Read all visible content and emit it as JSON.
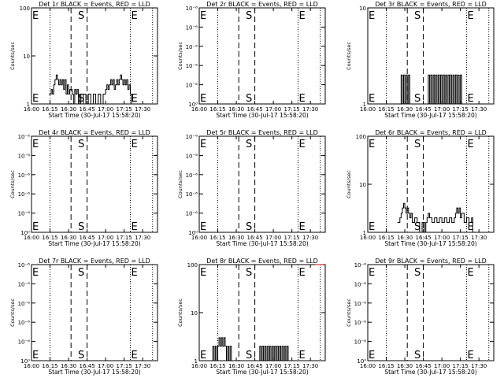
{
  "chart_data": [
    {
      "type": "line",
      "title": "Det 1r BLACK = Events, RED = LLD",
      "xlabel": "Start Time (30-Jul-17 15:58:20)",
      "ylabel": "Counts/sec",
      "x_tick_labels": [
        "16:00",
        "16:15",
        "16:30",
        "16:45",
        "17:00",
        "17:15",
        "17:30"
      ],
      "x_tick_minutes": [
        0,
        15,
        30,
        45,
        60,
        75,
        90
      ],
      "xlim_minutes": [
        0,
        102
      ],
      "yscale": "log",
      "ylim": [
        1,
        100
      ],
      "y_tick_labels": [
        "1",
        "10",
        "100"
      ],
      "y_tick_values": [
        1,
        10,
        100
      ],
      "markers": [
        {
          "label": "E",
          "minute": 0
        },
        {
          "label": "S",
          "minute": 37
        },
        {
          "label": "E",
          "minute": 80
        }
      ],
      "dotted_lines": [
        15,
        80,
        98
      ],
      "dashed_lines": [
        32,
        45
      ],
      "series": [
        {
          "color": "#000000",
          "x": [
            14,
            16,
            17,
            18,
            19,
            20,
            21,
            22,
            23,
            24,
            25,
            26,
            27,
            28,
            29,
            30,
            31,
            33,
            34,
            35,
            36,
            37,
            38,
            39,
            40,
            42,
            44,
            46,
            48,
            50,
            52,
            54,
            56,
            58,
            60,
            61,
            62,
            63,
            64,
            65,
            66,
            67,
            68,
            69,
            70,
            71,
            72,
            73,
            74,
            75,
            76,
            77,
            78,
            79,
            80,
            81
          ],
          "y": [
            1.6,
            2.0,
            1.6,
            2.5,
            3.2,
            4.0,
            3.2,
            2.5,
            3.2,
            2.5,
            3.2,
            2.0,
            3.2,
            1.6,
            2.5,
            1.6,
            2.0,
            1.6,
            1.0,
            2.0,
            1.6,
            2.0,
            1.0,
            1.6,
            1.0,
            1.6,
            1.0,
            1.6,
            1.0,
            1.6,
            1.0,
            1.6,
            1.0,
            1.6,
            2.0,
            2.5,
            2.0,
            2.5,
            3.2,
            2.5,
            3.2,
            2.0,
            2.5,
            3.2,
            2.5,
            3.2,
            4.0,
            3.2,
            2.5,
            3.2,
            2.5,
            3.2,
            2.0,
            2.5,
            1.6,
            1.0
          ]
        }
      ]
    },
    {
      "type": "line",
      "title": "Det 2r BLACK = Events, RED = LLD",
      "xlabel": "Start Time (30-Jul-17 15:58:20)",
      "ylabel": "Counts/sec",
      "x_tick_labels": [
        "16:00",
        "16:15",
        "16:30",
        "16:45",
        "17:00",
        "17:15",
        "17:30"
      ],
      "x_tick_minutes": [
        0,
        15,
        30,
        45,
        60,
        75,
        90
      ],
      "xlim_minutes": [
        0,
        102
      ],
      "yscale": "log",
      "ylim": [
        1,
        1.000001
      ],
      "y_tick_labels": [
        "10⁰",
        "10⁻⁶",
        "10⁻⁶",
        "10⁻⁶",
        "10⁻⁶",
        "10⁻⁶"
      ],
      "y_tick_values": [
        1,
        1.0000002,
        1.0000004,
        1.0000006,
        1.0000008,
        1.000001
      ],
      "markers": [
        {
          "label": "E",
          "minute": 0
        },
        {
          "label": "S",
          "minute": 37
        },
        {
          "label": "E",
          "minute": 80
        }
      ],
      "dotted_lines": [
        15,
        80,
        98
      ],
      "dashed_lines": [
        32,
        45
      ],
      "series": []
    },
    {
      "type": "line",
      "title": "Det 3r BLACK = Events, RED = LLD",
      "xlabel": "Start Time (30-Jul-17 15:58:20)",
      "ylabel": "Counts/sec",
      "x_tick_labels": [
        "16:00",
        "16:15",
        "16:30",
        "16:45",
        "17:00",
        "17:15",
        "17:30"
      ],
      "x_tick_minutes": [
        0,
        15,
        30,
        45,
        60,
        75,
        90
      ],
      "xlim_minutes": [
        0,
        102
      ],
      "yscale": "log",
      "ylim": [
        1,
        10
      ],
      "y_tick_labels": [
        "1",
        "10"
      ],
      "y_tick_values": [
        1,
        10
      ],
      "markers": [
        {
          "label": "E",
          "minute": 0
        },
        {
          "label": "S",
          "minute": 37
        },
        {
          "label": "E",
          "minute": 80
        }
      ],
      "dotted_lines": [
        15,
        80,
        98
      ],
      "dashed_lines": [
        32,
        45
      ],
      "series": [
        {
          "color": "#000000",
          "x": [
            26,
            27,
            28,
            29,
            30,
            31,
            32,
            33,
            34,
            48,
            49,
            50,
            51,
            52,
            53,
            54,
            55,
            56,
            57,
            58,
            59,
            60,
            61,
            62,
            63,
            64,
            65,
            66,
            67,
            68,
            69,
            70,
            71,
            72,
            73,
            74,
            75,
            76
          ],
          "y": [
            1,
            2,
            1,
            2,
            1,
            2,
            1,
            2,
            1,
            1,
            2,
            1,
            2,
            1,
            2,
            1,
            2,
            1,
            2,
            1,
            2,
            1,
            2,
            1,
            2,
            1,
            2,
            1,
            2,
            1,
            2,
            1,
            2,
            1,
            2,
            1,
            2,
            1
          ]
        }
      ]
    },
    {
      "type": "line",
      "title": "Det 4r BLACK = Events, RED = LLD",
      "xlabel": "Start Time (30-Jul-17 15:58:20)",
      "ylabel": "Counts/sec",
      "x_tick_labels": [
        "16:00",
        "16:15",
        "16:30",
        "16:45",
        "17:00",
        "17:15",
        "17:30"
      ],
      "x_tick_minutes": [
        0,
        15,
        30,
        45,
        60,
        75,
        90
      ],
      "xlim_minutes": [
        0,
        102
      ],
      "yscale": "log",
      "ylim": [
        1,
        1.000001
      ],
      "y_tick_labels": [
        "10⁰",
        "10⁻⁶",
        "10⁻⁶",
        "10⁻⁶",
        "10⁻⁶",
        "10⁻⁶"
      ],
      "y_tick_values": [
        1,
        1.0000002,
        1.0000004,
        1.0000006,
        1.0000008,
        1.000001
      ],
      "markers": [
        {
          "label": "E",
          "minute": 0
        },
        {
          "label": "S",
          "minute": 37
        },
        {
          "label": "E",
          "minute": 80
        }
      ],
      "dotted_lines": [
        15,
        80,
        98
      ],
      "dashed_lines": [
        32,
        45
      ],
      "series": []
    },
    {
      "type": "line",
      "title": "Det 5r BLACK = Events, RED = LLD",
      "xlabel": "Start Time (30-Jul-17 15:58:20)",
      "ylabel": "Counts/sec",
      "x_tick_labels": [
        "16:00",
        "16:15",
        "16:30",
        "16:45",
        "17:00",
        "17:15",
        "17:30"
      ],
      "x_tick_minutes": [
        0,
        15,
        30,
        45,
        60,
        75,
        90
      ],
      "xlim_minutes": [
        0,
        102
      ],
      "yscale": "log",
      "ylim": [
        1,
        1.000001
      ],
      "y_tick_labels": [
        "10⁰",
        "10⁻⁶",
        "10⁻⁶",
        "10⁻⁶",
        "10⁻⁶",
        "10⁻⁶"
      ],
      "y_tick_values": [
        1,
        1.0000002,
        1.0000004,
        1.0000006,
        1.0000008,
        1.000001
      ],
      "markers": [
        {
          "label": "E",
          "minute": 0
        },
        {
          "label": "S",
          "minute": 37
        },
        {
          "label": "E",
          "minute": 80
        }
      ],
      "dotted_lines": [
        15,
        80,
        98
      ],
      "dashed_lines": [
        32,
        45
      ],
      "series": []
    },
    {
      "type": "line",
      "title": "Det 6r BLACK = Events, RED = LLD",
      "xlabel": "Start Time (30-Jul-17 15:58:20)",
      "ylabel": "Counts/sec",
      "x_tick_labels": [
        "16:00",
        "16:15",
        "16:30",
        "16:45",
        "17:00",
        "17:15",
        "17:30"
      ],
      "x_tick_minutes": [
        0,
        15,
        30,
        45,
        60,
        75,
        90
      ],
      "xlim_minutes": [
        0,
        102
      ],
      "yscale": "log",
      "ylim": [
        1,
        100
      ],
      "y_tick_labels": [
        "1",
        "10",
        "100"
      ],
      "y_tick_values": [
        1,
        10,
        100
      ],
      "markers": [
        {
          "label": "E",
          "minute": 0
        },
        {
          "label": "S",
          "minute": 37
        },
        {
          "label": "E",
          "minute": 80
        }
      ],
      "dotted_lines": [
        15,
        80,
        98
      ],
      "dashed_lines": [
        32,
        45
      ],
      "series": [
        {
          "color": "#000000",
          "x": [
            24,
            26,
            27,
            28,
            29,
            30,
            31,
            32,
            33,
            34,
            35,
            36,
            38,
            40,
            42,
            44,
            46,
            47,
            48,
            49,
            50,
            52,
            54,
            56,
            58,
            60,
            62,
            64,
            66,
            68,
            70,
            71,
            72,
            73,
            74,
            75,
            76,
            78,
            80,
            82,
            84,
            85
          ],
          "y": [
            1.6,
            2.0,
            2.5,
            3.2,
            4.0,
            3.2,
            2.5,
            3.2,
            2.5,
            2.0,
            2.5,
            1.6,
            2.0,
            1.6,
            1.0,
            1.6,
            1.0,
            1.6,
            2.0,
            2.5,
            2.0,
            1.6,
            2.0,
            1.6,
            2.0,
            1.6,
            2.0,
            1.6,
            2.0,
            1.6,
            2.0,
            2.5,
            3.2,
            2.5,
            3.2,
            2.0,
            2.5,
            1.6,
            2.0,
            1.6,
            2.0,
            1.0
          ]
        }
      ]
    },
    {
      "type": "line",
      "title": "Det 7r BLACK = Events, RED = LLD",
      "xlabel": "Start Time (30-Jul-17 15:58:20)",
      "ylabel": "Counts/sec",
      "x_tick_labels": [
        "16:00",
        "16:15",
        "16:30",
        "16:45",
        "17:00",
        "17:15",
        "17:30"
      ],
      "x_tick_minutes": [
        0,
        15,
        30,
        45,
        60,
        75,
        90
      ],
      "xlim_minutes": [
        0,
        102
      ],
      "yscale": "log",
      "ylim": [
        1,
        1.000001
      ],
      "y_tick_labels": [
        "10⁰",
        "10⁻⁶",
        "10⁻⁶",
        "10⁻⁶",
        "10⁻⁶",
        "10⁻⁶"
      ],
      "y_tick_values": [
        1,
        1.0000002,
        1.0000004,
        1.0000006,
        1.0000008,
        1.000001
      ],
      "markers": [
        {
          "label": "E",
          "minute": 0
        },
        {
          "label": "S",
          "minute": 37
        },
        {
          "label": "E",
          "minute": 80
        }
      ],
      "dotted_lines": [
        15,
        80,
        98
      ],
      "dashed_lines": [
        32,
        45
      ],
      "series": []
    },
    {
      "type": "line",
      "title": "Det 8r BLACK = Events, RED = LLD",
      "xlabel": "Start Time (30-Jul-17 15:58:20)",
      "ylabel": "Counts/sec",
      "x_tick_labels": [
        "16:00",
        "16:15",
        "16:30",
        "16:45",
        "17:00",
        "17:15",
        "17:30"
      ],
      "x_tick_minutes": [
        0,
        15,
        30,
        45,
        60,
        75,
        90
      ],
      "xlim_minutes": [
        0,
        102
      ],
      "yscale": "log",
      "ylim": [
        1,
        100
      ],
      "y_tick_labels": [
        "1",
        "10",
        "100"
      ],
      "y_tick_values": [
        1,
        10,
        100
      ],
      "markers": [
        {
          "label": "E",
          "minute": 0
        },
        {
          "label": "S",
          "minute": 37
        },
        {
          "label": "E",
          "minute": 80
        }
      ],
      "dotted_lines": [
        15,
        80,
        98
      ],
      "dashed_lines": [
        32,
        45
      ],
      "series": [
        {
          "color": "#000000",
          "x": [
            10,
            11,
            12,
            13,
            14,
            15,
            16,
            17,
            18,
            19,
            20,
            21,
            22,
            23,
            24,
            25,
            26,
            48,
            49,
            50,
            51,
            52,
            53,
            54,
            55,
            56,
            57,
            58,
            59,
            60,
            61,
            62,
            63,
            64,
            65,
            66,
            67,
            68,
            69,
            70,
            71,
            72
          ],
          "y": [
            1,
            2,
            1,
            2,
            1,
            2,
            3,
            2,
            3,
            2,
            3,
            2,
            1,
            2,
            1,
            2,
            1,
            1,
            2,
            1,
            2,
            1,
            2,
            1,
            2,
            1,
            2,
            1,
            2,
            1,
            2,
            1,
            2,
            1,
            2,
            1,
            2,
            1,
            2,
            1,
            2,
            1
          ]
        },
        {
          "color": "#ff0000",
          "x": [
            94,
            95,
            96,
            97,
            98,
            99
          ],
          "y": [
            100,
            100,
            100,
            100,
            100,
            100
          ]
        }
      ]
    },
    {
      "type": "line",
      "title": "Det 9r BLACK = Events, RED = LLD",
      "xlabel": "Start Time (30-Jul-17 15:58:20)",
      "ylabel": "Counts/sec",
      "x_tick_labels": [
        "16:00",
        "16:15",
        "16:30",
        "16:45",
        "17:00",
        "17:15",
        "17:30"
      ],
      "x_tick_minutes": [
        0,
        15,
        30,
        45,
        60,
        75,
        90
      ],
      "xlim_minutes": [
        0,
        102
      ],
      "yscale": "log",
      "ylim": [
        1,
        1.000001
      ],
      "y_tick_labels": [
        "10⁰",
        "10⁻⁶",
        "10⁻⁶",
        "10⁻⁶",
        "10⁻⁶",
        "10⁻⁶"
      ],
      "y_tick_values": [
        1,
        1.0000002,
        1.0000004,
        1.0000006,
        1.0000008,
        1.000001
      ],
      "markers": [
        {
          "label": "E",
          "minute": 0
        },
        {
          "label": "S",
          "minute": 37
        },
        {
          "label": "E",
          "minute": 80
        }
      ],
      "dotted_lines": [
        15,
        80,
        98
      ],
      "dashed_lines": [
        32,
        45
      ],
      "series": []
    }
  ]
}
